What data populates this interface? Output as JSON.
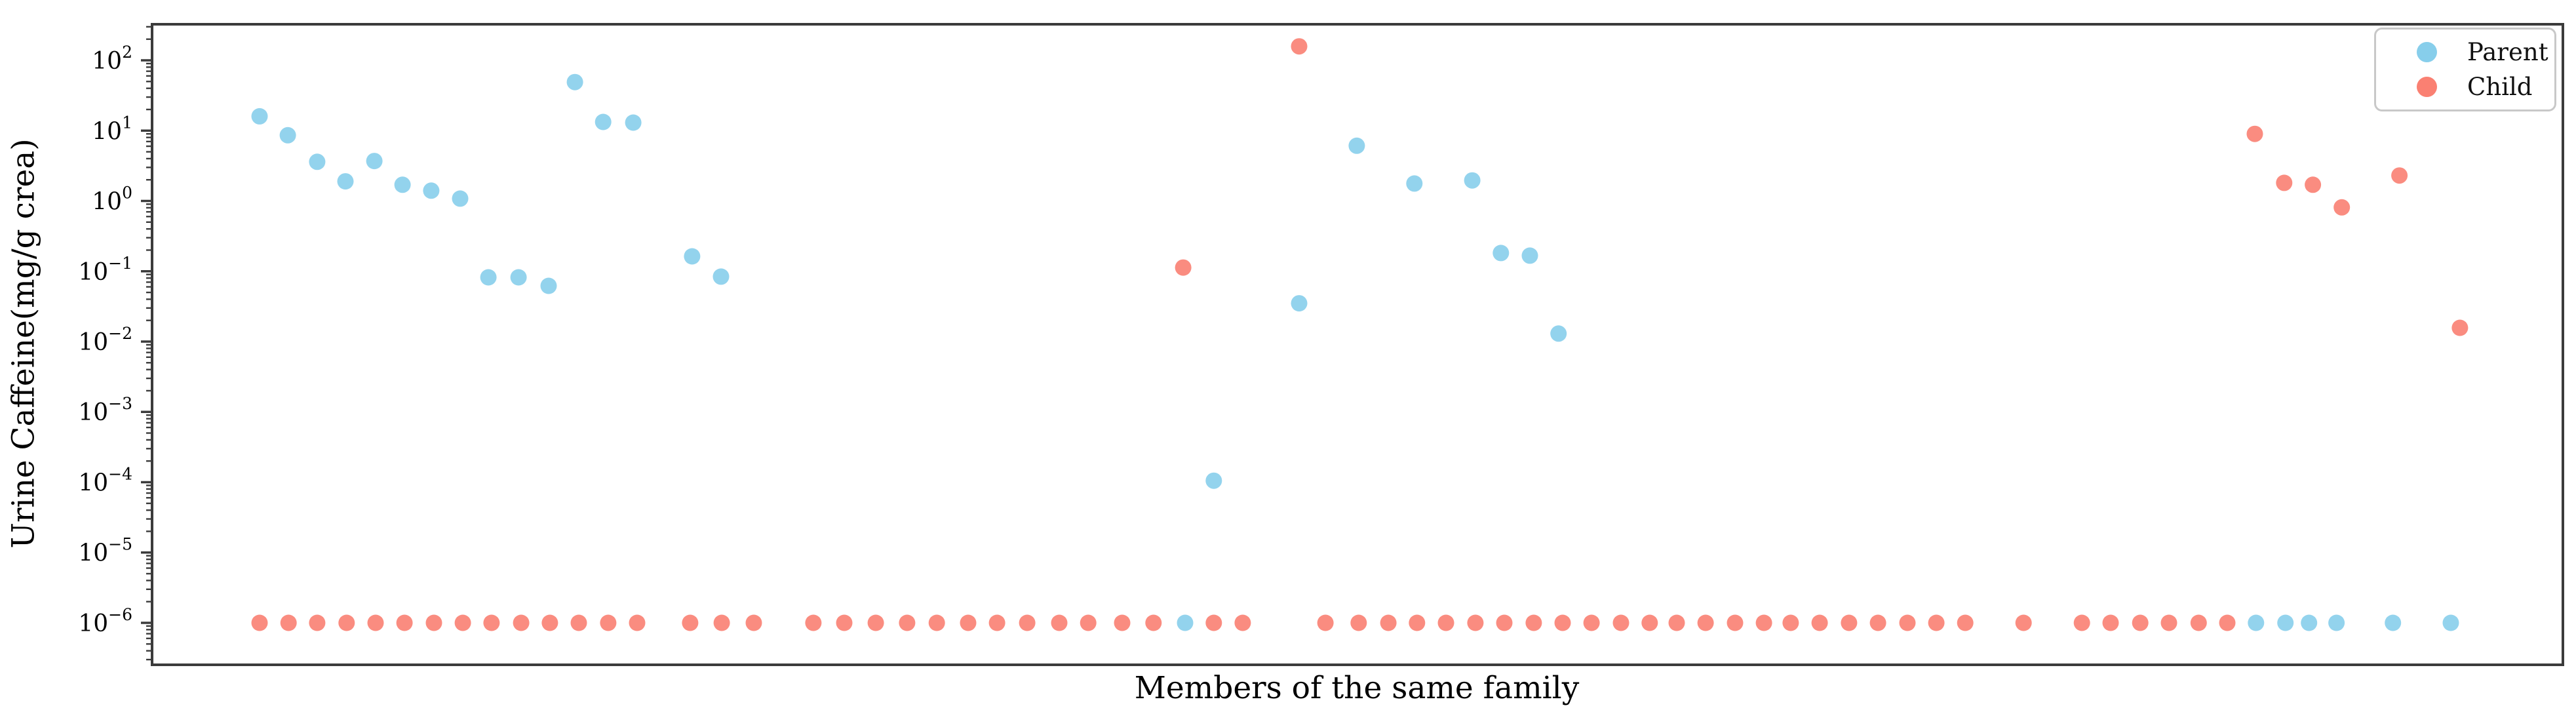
{
  "chart_data": {
    "type": "scatter",
    "title": "",
    "xlabel": "Members of the same family",
    "ylabel": "Urine Caffeine(mg/g crea)",
    "yscale": "log",
    "ylim_log10": [
      -6.597,
      2.513
    ],
    "ytick_exponents": [
      2,
      1,
      0,
      -1,
      -2,
      -3,
      -4,
      -5,
      -6
    ],
    "x_axis_ticks": "none",
    "grid": false,
    "axis_color": "#3b3b3b",
    "marker": {
      "radius_px": 12.5,
      "opacity": 0.9
    },
    "legend": {
      "position": "upper right",
      "entries": [
        {
          "label": "Parent",
          "color": "#87CEEB"
        },
        {
          "label": "Child",
          "color": "#FA8072"
        }
      ]
    },
    "series": [
      {
        "name": "Parent",
        "color": "#87CEEB",
        "points": [
          [
            0.0446,
            16
          ],
          [
            0.0563,
            8.6
          ],
          [
            0.0685,
            3.6
          ],
          [
            0.0802,
            1.9
          ],
          [
            0.0922,
            3.7
          ],
          [
            0.1039,
            1.7
          ],
          [
            0.1158,
            1.4
          ],
          [
            0.1278,
            1.08
          ],
          [
            0.1395,
            0.082
          ],
          [
            0.152,
            0.082
          ],
          [
            0.1645,
            0.062
          ],
          [
            0.1754,
            49
          ],
          [
            0.1871,
            13.3
          ],
          [
            0.1996,
            13.0
          ],
          [
            0.224,
            0.163
          ],
          [
            0.236,
            0.084
          ],
          [
            0.4285,
            1e-06
          ],
          [
            0.4404,
            0.000105
          ],
          [
            0.4758,
            0.035
          ],
          [
            0.4997,
            6.1
          ],
          [
            0.5236,
            1.77
          ],
          [
            0.5476,
            1.96
          ],
          [
            0.5595,
            0.182
          ],
          [
            0.5715,
            0.167
          ],
          [
            0.5834,
            0.013
          ],
          [
            0.8727,
            1e-06
          ],
          [
            0.8849,
            1e-06
          ],
          [
            0.8947,
            1e-06
          ],
          [
            0.9061,
            1e-06
          ],
          [
            0.9295,
            1e-06
          ],
          [
            0.9535,
            1e-06
          ]
        ]
      },
      {
        "name": "Child",
        "color": "#FA8072",
        "points": [
          [
            0.0446,
            1e-06
          ],
          [
            0.0566,
            1e-06
          ],
          [
            0.0685,
            1e-06
          ],
          [
            0.0807,
            1e-06
          ],
          [
            0.0927,
            1e-06
          ],
          [
            0.1047,
            1e-06
          ],
          [
            0.1169,
            1e-06
          ],
          [
            0.1289,
            1e-06
          ],
          [
            0.1408,
            1e-06
          ],
          [
            0.1531,
            1e-06
          ],
          [
            0.165,
            1e-06
          ],
          [
            0.177,
            1e-06
          ],
          [
            0.1892,
            1e-06
          ],
          [
            0.2012,
            1e-06
          ],
          [
            0.2232,
            1e-06
          ],
          [
            0.2363,
            1e-06
          ],
          [
            0.2496,
            1e-06
          ],
          [
            0.2743,
            1e-06
          ],
          [
            0.2871,
            1e-06
          ],
          [
            0.3002,
            1e-06
          ],
          [
            0.3132,
            1e-06
          ],
          [
            0.3255,
            1e-06
          ],
          [
            0.3385,
            1e-06
          ],
          [
            0.3505,
            1e-06
          ],
          [
            0.363,
            1e-06
          ],
          [
            0.3763,
            1e-06
          ],
          [
            0.3883,
            1e-06
          ],
          [
            0.4024,
            1e-06
          ],
          [
            0.4154,
            1e-06
          ],
          [
            0.4277,
            0.113
          ],
          [
            0.4404,
            1e-06
          ],
          [
            0.4524,
            1e-06
          ],
          [
            0.4758,
            158
          ],
          [
            0.4867,
            1e-06
          ],
          [
            0.5005,
            1e-06
          ],
          [
            0.5128,
            1e-06
          ],
          [
            0.5247,
            1e-06
          ],
          [
            0.5367,
            1e-06
          ],
          [
            0.5489,
            1e-06
          ],
          [
            0.5609,
            1e-06
          ],
          [
            0.5731,
            1e-06
          ],
          [
            0.5851,
            1e-06
          ],
          [
            0.5971,
            1e-06
          ],
          [
            0.6093,
            1e-06
          ],
          [
            0.6212,
            1e-06
          ],
          [
            0.6324,
            1e-06
          ],
          [
            0.6444,
            1e-06
          ],
          [
            0.6566,
            1e-06
          ],
          [
            0.6686,
            1e-06
          ],
          [
            0.6797,
            1e-06
          ],
          [
            0.6917,
            1e-06
          ],
          [
            0.7039,
            1e-06
          ],
          [
            0.7159,
            1e-06
          ],
          [
            0.7281,
            1e-06
          ],
          [
            0.7401,
            1e-06
          ],
          [
            0.7521,
            1e-06
          ],
          [
            0.7763,
            1e-06
          ],
          [
            0.8005,
            1e-06
          ],
          [
            0.8124,
            1e-06
          ],
          [
            0.8247,
            1e-06
          ],
          [
            0.8366,
            1e-06
          ],
          [
            0.8489,
            1e-06
          ],
          [
            0.8608,
            1e-06
          ],
          [
            0.8722,
            9.0
          ],
          [
            0.8844,
            1.81
          ],
          [
            0.8963,
            1.7
          ],
          [
            0.9083,
            0.81
          ],
          [
            0.9322,
            2.3
          ],
          [
            0.9573,
            0.0157
          ]
        ]
      }
    ]
  }
}
